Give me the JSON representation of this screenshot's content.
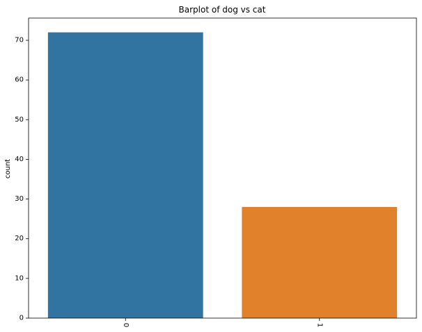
{
  "chart_data": {
    "type": "bar",
    "title": "Barplot of dog vs cat",
    "xlabel": "",
    "ylabel": "count",
    "categories": [
      "0",
      "1"
    ],
    "values": [
      72,
      28
    ],
    "colors": [
      "#3274a1",
      "#e1812c"
    ],
    "ylim": [
      0,
      75.6
    ],
    "yticks": [
      "0",
      "10",
      "20",
      "30",
      "40",
      "50",
      "60",
      "70"
    ],
    "grid": false,
    "legend": "none"
  }
}
